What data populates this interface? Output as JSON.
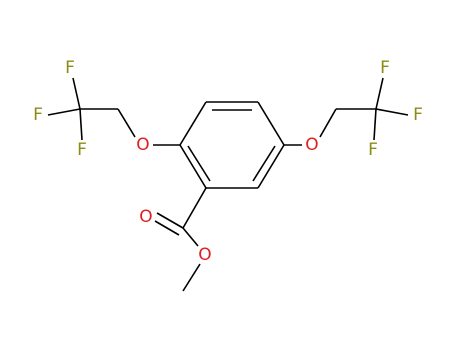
{
  "atoms": [
    {
      "label": "F"
    },
    {
      "label": "F"
    },
    {
      "label": "F"
    },
    {
      "label": "O"
    },
    {
      "label": "F"
    },
    {
      "label": "F"
    },
    {
      "label": "F"
    },
    {
      "label": "O"
    },
    {
      "label": "O"
    },
    {
      "label": "O"
    }
  ]
}
